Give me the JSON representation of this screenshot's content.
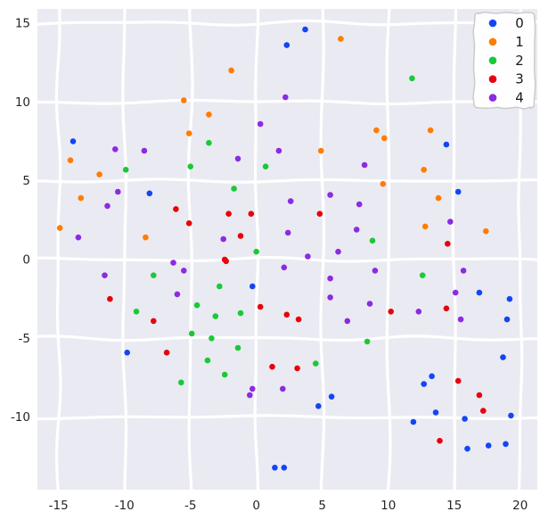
{
  "figure": {
    "background": "#ffffff",
    "plot_background": "#eaeaf2",
    "grid_color": "#ffffff",
    "tick_text_color": "#262626",
    "legend_text_color": "#1a1a1a",
    "legend_border_color": "#c9c9c9",
    "legend_fill": "#ffffff"
  },
  "chart_data": {
    "type": "scatter",
    "title": "",
    "xlabel": "",
    "ylabel": "",
    "xlim": [
      -16.6,
      21.3
    ],
    "ylim": [
      -14.6,
      15.9
    ],
    "x_ticks": [
      -15,
      -10,
      -5,
      0,
      5,
      10,
      15,
      20
    ],
    "y_ticks": [
      -10,
      -5,
      0,
      5,
      10,
      15
    ],
    "grid": true,
    "grid_style": "wavy-white-darkgrid",
    "legend_position": "upper right",
    "marker_radius_px": 3.3,
    "series": [
      {
        "name": "0",
        "color": "#1445f5",
        "points": [
          [
            -13.9,
            7.5
          ],
          [
            -8.1,
            4.2
          ],
          [
            3.7,
            14.6
          ],
          [
            2.3,
            13.6
          ],
          [
            14.4,
            7.3
          ],
          [
            15.3,
            4.3
          ],
          [
            -0.3,
            -1.7
          ],
          [
            -9.8,
            -5.9
          ],
          [
            16.9,
            -2.1
          ],
          [
            19.2,
            -2.5
          ],
          [
            19.0,
            -3.8
          ],
          [
            18.7,
            -6.2
          ],
          [
            13.3,
            -7.4
          ],
          [
            12.7,
            -7.9
          ],
          [
            11.9,
            -10.3
          ],
          [
            13.6,
            -9.7
          ],
          [
            15.8,
            -10.1
          ],
          [
            19.3,
            -9.9
          ],
          [
            5.7,
            -8.7
          ],
          [
            4.7,
            -9.3
          ],
          [
            16.0,
            -12.0
          ],
          [
            17.6,
            -11.8
          ],
          [
            18.9,
            -11.7
          ],
          [
            1.4,
            -13.2
          ],
          [
            2.1,
            -13.2
          ]
        ]
      },
      {
        "name": "1",
        "color": "#ff7c00",
        "points": [
          [
            -1.9,
            12.0
          ],
          [
            -5.5,
            10.1
          ],
          [
            -3.6,
            9.2
          ],
          [
            -5.1,
            8.0
          ],
          [
            -14.1,
            6.3
          ],
          [
            -11.9,
            5.4
          ],
          [
            -13.3,
            3.9
          ],
          [
            -14.9,
            2.0
          ],
          [
            -8.4,
            1.4
          ],
          [
            6.4,
            14.0
          ],
          [
            9.1,
            8.2
          ],
          [
            13.2,
            8.2
          ],
          [
            9.7,
            7.7
          ],
          [
            4.9,
            6.9
          ],
          [
            12.7,
            5.7
          ],
          [
            9.6,
            4.8
          ],
          [
            13.8,
            3.9
          ],
          [
            12.8,
            2.1
          ],
          [
            17.4,
            1.8
          ]
        ]
      },
      {
        "name": "2",
        "color": "#1ac938",
        "points": [
          [
            -3.6,
            7.4
          ],
          [
            -9.9,
            5.7
          ],
          [
            -5.0,
            5.9
          ],
          [
            0.7,
            5.9
          ],
          [
            -1.7,
            4.5
          ],
          [
            0.0,
            0.5
          ],
          [
            11.8,
            11.5
          ],
          [
            8.8,
            1.2
          ],
          [
            -7.8,
            -1.0
          ],
          [
            -2.8,
            -1.7
          ],
          [
            -4.5,
            -2.9
          ],
          [
            -9.1,
            -3.3
          ],
          [
            -1.2,
            -3.4
          ],
          [
            -3.1,
            -3.6
          ],
          [
            -4.9,
            -4.7
          ],
          [
            -3.4,
            -5.0
          ],
          [
            -1.4,
            -5.6
          ],
          [
            -3.7,
            -6.4
          ],
          [
            -2.4,
            -7.3
          ],
          [
            -5.7,
            -7.8
          ],
          [
            12.6,
            -1.0
          ],
          [
            8.4,
            -5.2
          ],
          [
            4.5,
            -6.6
          ]
        ]
      },
      {
        "name": "3",
        "color": "#e8000b",
        "points": [
          [
            -6.1,
            3.2
          ],
          [
            -2.1,
            2.9
          ],
          [
            -0.4,
            2.9
          ],
          [
            -5.1,
            2.3
          ],
          [
            -1.2,
            1.5
          ],
          [
            -2.4,
            0.0
          ],
          [
            4.8,
            2.9
          ],
          [
            14.5,
            1.0
          ],
          [
            -2.3,
            -0.1
          ],
          [
            -11.1,
            -2.5
          ],
          [
            0.3,
            -3.0
          ],
          [
            -7.8,
            -3.9
          ],
          [
            -6.8,
            -5.9
          ],
          [
            2.3,
            -3.5
          ],
          [
            3.2,
            -3.8
          ],
          [
            10.2,
            -3.3
          ],
          [
            14.4,
            -3.1
          ],
          [
            1.2,
            -6.8
          ],
          [
            3.1,
            -6.9
          ],
          [
            15.3,
            -7.7
          ],
          [
            16.9,
            -8.6
          ],
          [
            17.2,
            -9.6
          ],
          [
            13.9,
            -11.5
          ]
        ]
      },
      {
        "name": "4",
        "color": "#8b2be2",
        "points": [
          [
            0.3,
            8.6
          ],
          [
            -10.7,
            7.0
          ],
          [
            -8.5,
            6.9
          ],
          [
            -1.4,
            6.4
          ],
          [
            -10.5,
            4.3
          ],
          [
            -11.3,
            3.4
          ],
          [
            -13.5,
            1.4
          ],
          [
            -2.5,
            1.3
          ],
          [
            2.2,
            10.3
          ],
          [
            1.7,
            6.9
          ],
          [
            8.2,
            6.0
          ],
          [
            5.6,
            4.1
          ],
          [
            2.6,
            3.7
          ],
          [
            7.8,
            3.5
          ],
          [
            14.7,
            2.4
          ],
          [
            2.4,
            1.7
          ],
          [
            7.6,
            1.9
          ],
          [
            3.9,
            0.2
          ],
          [
            6.2,
            0.5
          ],
          [
            -6.3,
            -0.2
          ],
          [
            -5.5,
            -0.7
          ],
          [
            -11.5,
            -1.0
          ],
          [
            -6.0,
            -2.2
          ],
          [
            2.1,
            -0.5
          ],
          [
            9.0,
            -0.7
          ],
          [
            15.7,
            -0.7
          ],
          [
            5.6,
            -1.2
          ],
          [
            5.6,
            -2.4
          ],
          [
            15.1,
            -2.1
          ],
          [
            8.6,
            -2.8
          ],
          [
            12.3,
            -3.3
          ],
          [
            6.9,
            -3.9
          ],
          [
            15.5,
            -3.8
          ],
          [
            -0.3,
            -8.2
          ],
          [
            -0.5,
            -8.6
          ],
          [
            2.0,
            -8.2
          ]
        ]
      }
    ]
  },
  "legend": {
    "labels": [
      "0",
      "1",
      "2",
      "3",
      "4"
    ]
  }
}
